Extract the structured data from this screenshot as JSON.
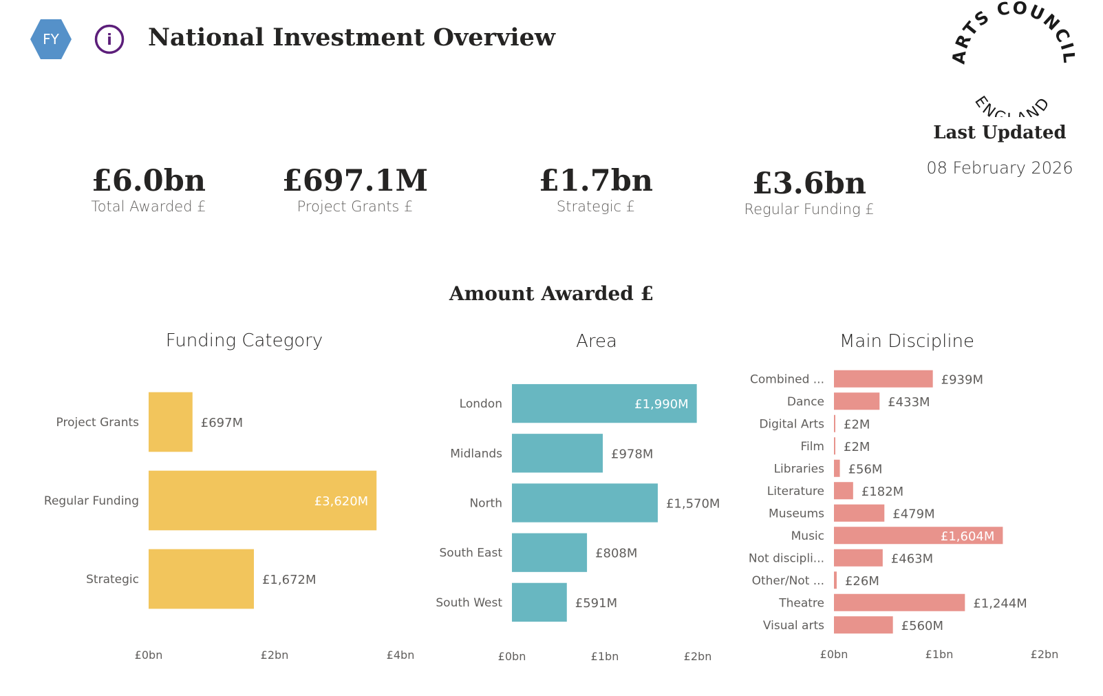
{
  "header": {
    "fy_label": "FY",
    "info_glyph": "i",
    "title": "National Investment Overview",
    "logo_top_text": "ARTS COUNCIL",
    "logo_bottom_text": "ENGLAND",
    "last_updated_label": "Last Updated",
    "last_updated_date": "08 February 2026"
  },
  "kpis": [
    {
      "value": "£6.0bn",
      "label": "Total Awarded £"
    },
    {
      "value": "£697.1M",
      "label": "Project Grants £"
    },
    {
      "value": "£1.7bn",
      "label": "Strategic £"
    },
    {
      "value": "£3.6bn",
      "label": "Regular Funding £"
    }
  ],
  "section_title": "Amount Awarded £",
  "colors": {
    "fy_badge": "#5591c9",
    "info_icon": "#5c1e7a",
    "funding_category": "#f2c55c",
    "area": "#68b7c1",
    "main_discipline": "#e8938c"
  },
  "chart_data": [
    {
      "type": "bar",
      "orientation": "horizontal",
      "title": "Funding Category",
      "categories": [
        "Project Grants",
        "Regular Funding",
        "Strategic"
      ],
      "values": [
        697,
        3620,
        1672
      ],
      "value_labels": [
        "£697M",
        "£3,620M",
        "£1,672M"
      ],
      "unit": "£M",
      "xlim": [
        0,
        4000
      ],
      "xticks": [
        {
          "value": 0,
          "label": "£0bn"
        },
        {
          "value": 2000,
          "label": "£2bn"
        },
        {
          "value": 4000,
          "label": "£4bn"
        }
      ]
    },
    {
      "type": "bar",
      "orientation": "horizontal",
      "title": "Area",
      "categories": [
        "London",
        "Midlands",
        "North",
        "South East",
        "South West"
      ],
      "values": [
        1990,
        978,
        1570,
        808,
        591
      ],
      "value_labels": [
        "£1,990M",
        "£978M",
        "£1,570M",
        "£808M",
        "£591M"
      ],
      "unit": "£M",
      "xlim": [
        0,
        2000
      ],
      "xticks": [
        {
          "value": 0,
          "label": "£0bn"
        },
        {
          "value": 1000,
          "label": "£1bn"
        },
        {
          "value": 2000,
          "label": "£2bn"
        }
      ]
    },
    {
      "type": "bar",
      "orientation": "horizontal",
      "title": "Main Discipline",
      "categories": [
        "Combined ...",
        "Dance",
        "Digital Arts",
        "Film",
        "Libraries",
        "Literature",
        "Museums",
        "Music",
        "Not discipli...",
        "Other/Not ...",
        "Theatre",
        "Visual arts"
      ],
      "values": [
        939,
        433,
        2,
        2,
        56,
        182,
        479,
        1604,
        463,
        26,
        1244,
        560
      ],
      "value_labels": [
        "£939M",
        "£433M",
        "£2M",
        "£2M",
        "£56M",
        "£182M",
        "£479M",
        "£1,604M",
        "£463M",
        "£26M",
        "£1,244M",
        "£560M"
      ],
      "unit": "£M",
      "xlim": [
        0,
        2000
      ],
      "xticks": [
        {
          "value": 0,
          "label": "£0bn"
        },
        {
          "value": 1000,
          "label": "£1bn"
        },
        {
          "value": 2000,
          "label": "£2bn"
        }
      ]
    }
  ]
}
